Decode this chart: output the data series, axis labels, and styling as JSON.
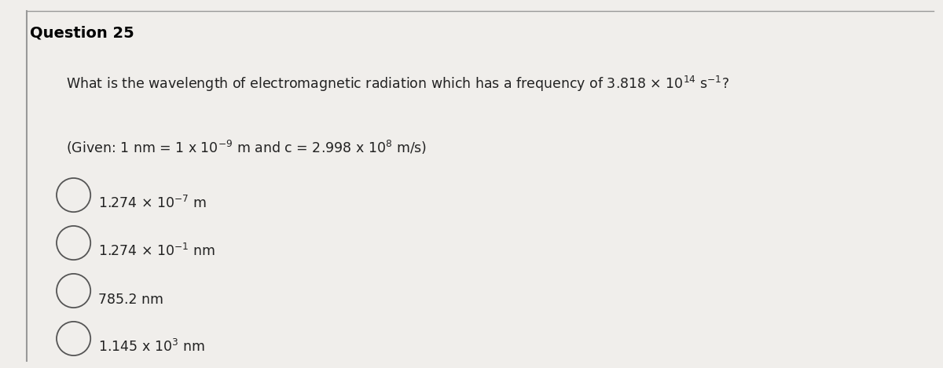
{
  "title": "Question 25",
  "bg_color": "#f0eeeb",
  "title_color": "#000000",
  "text_color": "#222222",
  "border_color": "#999999",
  "title_fontsize": 14,
  "body_fontsize": 12.5,
  "option_fontsize": 12.5,
  "sup_fontsize": 9,
  "q_line": "What is the wavelength of electromagnetic radiation which has a frequency of 3.818 × 10$^{14}$ s$^{-1}$?",
  "given_line": "(Given: 1 nm = 1 x 10$^{-9}$ m and c = 2.998 x 10$^{8}$ m/s)",
  "options": [
    "1.274 × 10$^{-7}$ m",
    "1.274 × 10$^{-1}$ nm",
    "785.2 nm",
    "1.145 x 10$^{3}$ nm"
  ]
}
